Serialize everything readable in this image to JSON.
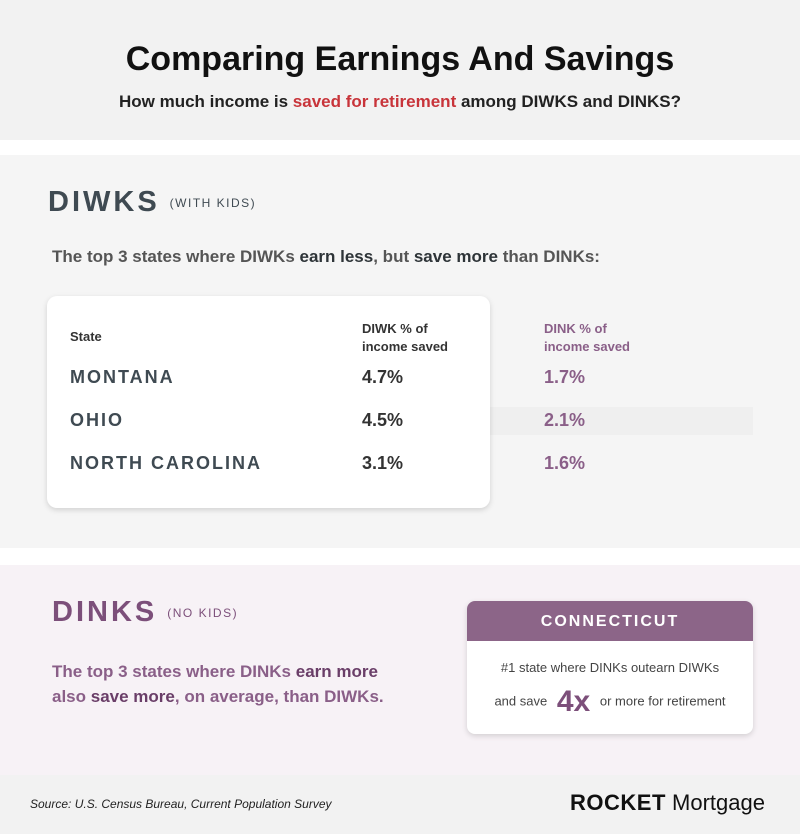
{
  "header": {
    "title": "Comparing Earnings And Savings",
    "subtitle": [
      "How much income is ",
      "saved for retirement",
      " among DIWKS and DINKS?"
    ]
  },
  "diwks": {
    "label": "DIWKS",
    "note": "(WITH KIDS)",
    "intro": [
      "The top 3 states where DIWKs ",
      "earn less",
      ", but ",
      "save more",
      " than DINKs:"
    ],
    "table": {
      "headers": [
        "State",
        "DIWK % of income saved",
        "DINK % of income saved"
      ],
      "rows": [
        [
          "MONTANA",
          "4.7%",
          "1.7%"
        ],
        [
          "OHIO",
          "4.5%",
          "2.1%"
        ],
        [
          "NORTH CAROLINA",
          "3.1%",
          "1.6%"
        ]
      ]
    }
  },
  "dinks": {
    "label": "DINKS",
    "note": "(NO KIDS)",
    "intro": [
      "The top 3 states where DINKs ",
      "earn more",
      " also ",
      "save more",
      ", on average, than DIWKs."
    ],
    "callout": {
      "title": "CONNECTICUT",
      "line1": "#1 state where DINKs outearn DIWKs",
      "line2": [
        "and save",
        "4x",
        "or more for retirement"
      ]
    }
  },
  "footer": {
    "source": "Source: U.S. Census Bureau, Current Population Survey",
    "brand": [
      "ROCKET",
      "Mortgage"
    ]
  }
}
